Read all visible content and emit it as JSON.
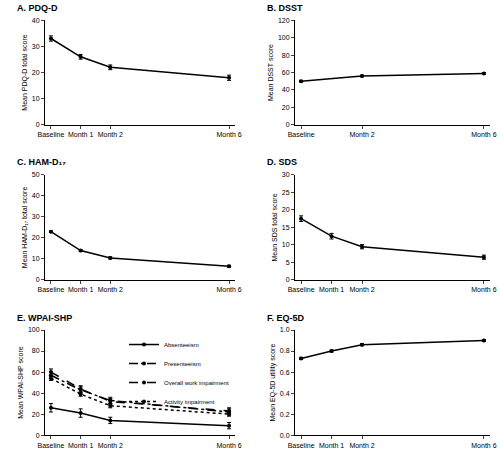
{
  "chart_data": [
    {
      "type": "line",
      "title": "A. PDQ-D",
      "y_label": "Mean PDQ-D total score",
      "x": [
        0,
        1,
        2,
        6
      ],
      "xticks": [
        {
          "value": 0,
          "label": "Baseline"
        },
        {
          "value": 1,
          "label": "Month 1"
        },
        {
          "value": 2,
          "label": "Month 2"
        },
        {
          "value": 6,
          "label": "Month 6"
        }
      ],
      "xlim": [
        -0.2,
        6.2
      ],
      "ylim": [
        0,
        40
      ],
      "yticks": [
        0,
        10,
        20,
        30,
        40
      ],
      "series": [
        {
          "values": [
            33,
            26,
            22,
            18
          ],
          "errors": [
            1,
            0.9,
            0.9,
            1
          ],
          "color": "#000000",
          "marker": "circle",
          "line_style": "solid"
        }
      ]
    },
    {
      "type": "line",
      "title": "B. DSST",
      "y_label": "Mean DSST score",
      "x": [
        0,
        2,
        6
      ],
      "xticks": [
        {
          "value": 0,
          "label": "Baseline"
        },
        {
          "value": 2,
          "label": "Month 2"
        },
        {
          "value": 6,
          "label": "Month 6"
        }
      ],
      "xlim": [
        -0.2,
        6.2
      ],
      "ylim": [
        0,
        120
      ],
      "yticks": [
        0,
        20,
        40,
        60,
        80,
        100,
        120
      ],
      "series": [
        {
          "values": [
            50,
            56,
            59
          ],
          "errors": [
            1,
            1,
            1
          ],
          "color": "#000000",
          "marker": "circle",
          "line_style": "solid"
        }
      ]
    },
    {
      "type": "line",
      "title": "C. HAM-D₁₇",
      "y_label": "Mean HAM-D₁₇ total score",
      "x": [
        0,
        1,
        2,
        6
      ],
      "xticks": [
        {
          "value": 0,
          "label": "Baseline"
        },
        {
          "value": 1,
          "label": "Month 1"
        },
        {
          "value": 2,
          "label": "Month 2"
        },
        {
          "value": 6,
          "label": "Month 6"
        }
      ],
      "xlim": [
        -0.2,
        6.2
      ],
      "ylim": [
        0,
        50
      ],
      "yticks": [
        0,
        10,
        20,
        30,
        40,
        50
      ],
      "series": [
        {
          "values": [
            23,
            14,
            10.5,
            6.5
          ],
          "errors": [
            0.4,
            0.5,
            0.5,
            0.5
          ],
          "color": "#000000",
          "marker": "circle",
          "line_style": "solid"
        }
      ]
    },
    {
      "type": "line",
      "title": "D. SDS",
      "y_label": "Mean SDS total score",
      "x": [
        0,
        1,
        2,
        6
      ],
      "xticks": [
        {
          "value": 0,
          "label": "Baseline"
        },
        {
          "value": 1,
          "label": "Month 1"
        },
        {
          "value": 2,
          "label": "Month 2"
        },
        {
          "value": 6,
          "label": "Month 6"
        }
      ],
      "xlim": [
        -0.2,
        6.2
      ],
      "ylim": [
        0,
        30
      ],
      "yticks": [
        0,
        5,
        10,
        15,
        20,
        25,
        30
      ],
      "series": [
        {
          "values": [
            17.5,
            12.5,
            9.5,
            6.5
          ],
          "errors": [
            0.8,
            0.8,
            0.6,
            0.6
          ],
          "color": "#000000",
          "marker": "circle",
          "line_style": "solid"
        }
      ]
    },
    {
      "type": "line",
      "title": "E. WPAI-SHP",
      "y_label": "Mean WPAI-SHP score",
      "x": [
        0,
        1,
        2,
        6
      ],
      "xticks": [
        {
          "value": 0,
          "label": "Baseline"
        },
        {
          "value": 1,
          "label": "Month 1"
        },
        {
          "value": 2,
          "label": "Month 2"
        },
        {
          "value": 6,
          "label": "Month 6"
        }
      ],
      "xlim": [
        -0.2,
        6.2
      ],
      "ylim": [
        0,
        100
      ],
      "yticks": [
        0,
        20,
        40,
        60,
        80,
        100
      ],
      "legend": "upper right",
      "series": [
        {
          "name": "Absenteeism",
          "values": [
            26,
            21,
            14,
            9
          ],
          "errors": [
            4,
            4,
            3,
            3
          ],
          "color": "#000000",
          "marker": "circle",
          "line_style": "solid"
        },
        {
          "name": "Presenteeism",
          "values": [
            57,
            43,
            33,
            22
          ],
          "errors": [
            3,
            3,
            3,
            3
          ],
          "color": "#000000",
          "marker": "circle",
          "line_style": "dashdot"
        },
        {
          "name": "Overall work impairment",
          "values": [
            60,
            44,
            32,
            23
          ],
          "errors": [
            3,
            3,
            3,
            3
          ],
          "color": "#000000",
          "marker": "circle",
          "line_style": "dash"
        },
        {
          "name": "Activity impairment",
          "values": [
            54,
            39,
            28,
            20
          ],
          "errors": [
            2,
            2,
            2,
            2
          ],
          "color": "#000000",
          "marker": "circle",
          "line_style": "dot"
        }
      ]
    },
    {
      "type": "line",
      "title": "F. EQ-5D",
      "y_label": "Mean EQ-5D utility score",
      "x": [
        0,
        1,
        2,
        6
      ],
      "xticks": [
        {
          "value": 0,
          "label": "Baseline"
        },
        {
          "value": 1,
          "label": "Month 1"
        },
        {
          "value": 2,
          "label": "Month 2"
        },
        {
          "value": 6,
          "label": "Month 6"
        }
      ],
      "xlim": [
        -0.2,
        6.2
      ],
      "ylim": [
        0,
        1
      ],
      "yticks": [
        {
          "value": 0,
          "label": "0.0"
        },
        0.2,
        0.4,
        0.6,
        0.8,
        {
          "value": 1,
          "label": "1.0"
        }
      ],
      "series": [
        {
          "values": [
            0.73,
            0.8,
            0.86,
            0.9
          ],
          "errors": [
            0.01,
            0.01,
            0.01,
            0.01
          ],
          "color": "#000000",
          "marker": "circle",
          "line_style": "solid"
        }
      ]
    }
  ]
}
